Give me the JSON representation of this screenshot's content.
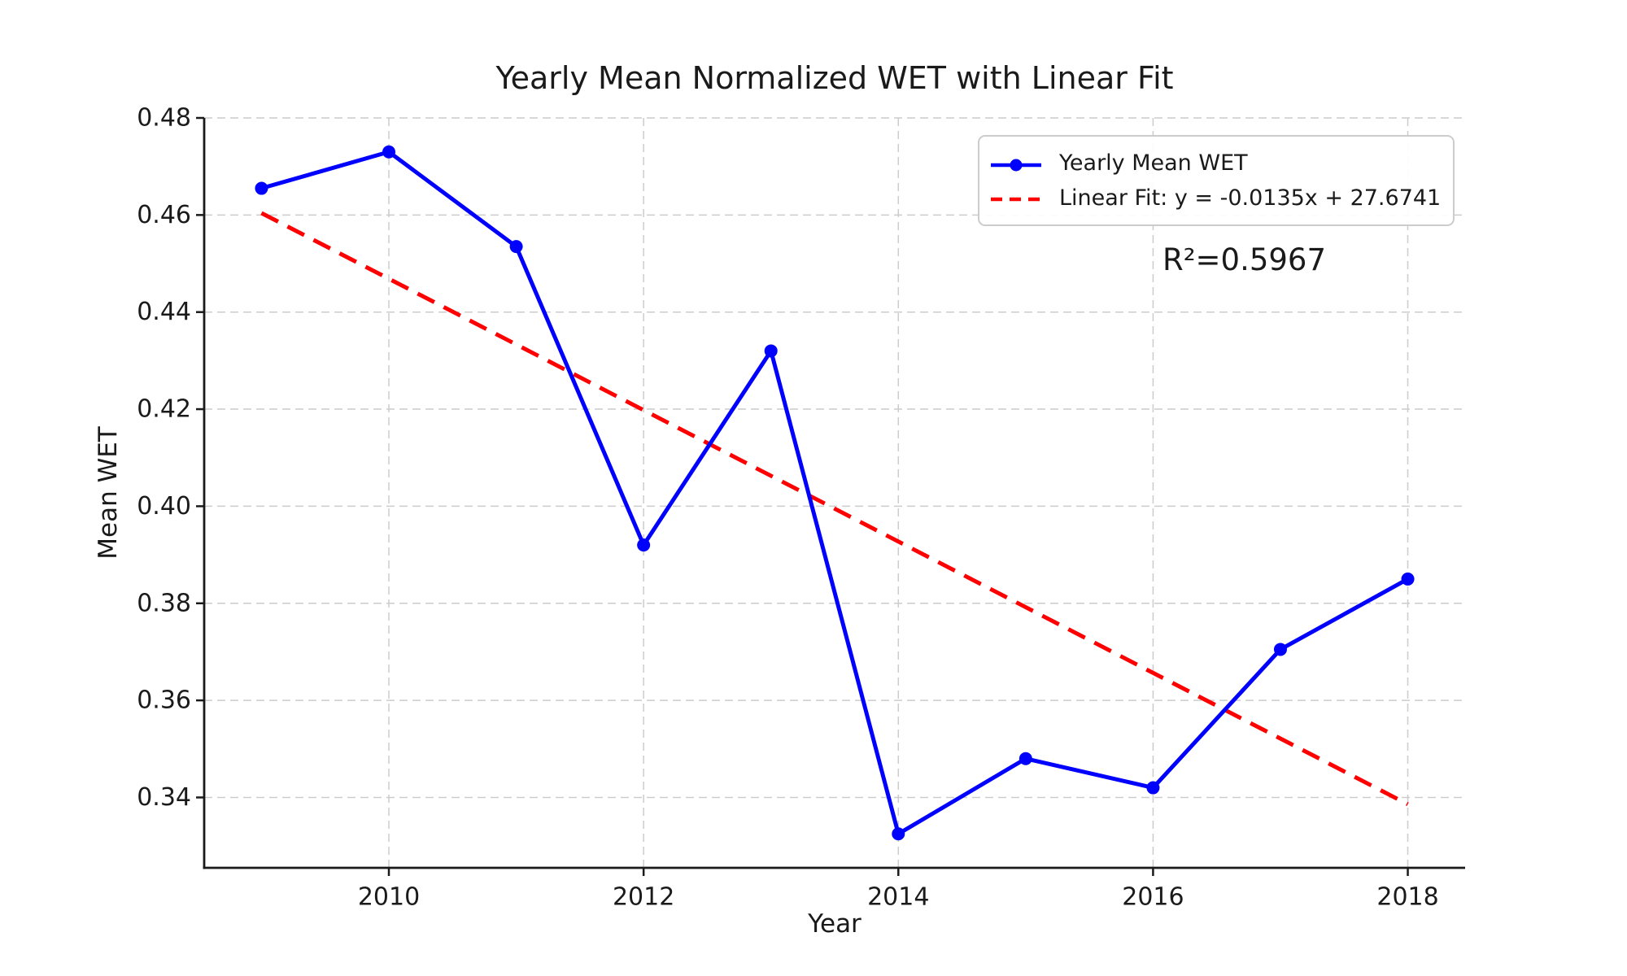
{
  "title": "Yearly Mean Normalized WET with Linear Fit",
  "chart_data": {
    "type": "line",
    "title": "Yearly Mean Normalized WET with Linear Fit",
    "xlabel": "Year",
    "ylabel": "Mean WET",
    "x": [
      2009,
      2010,
      2011,
      2012,
      2013,
      2014,
      2015,
      2016,
      2017,
      2018
    ],
    "series": [
      {
        "name": "Yearly Mean WET",
        "values": [
          0.4655,
          0.473,
          0.4535,
          0.392,
          0.432,
          0.3325,
          0.348,
          0.342,
          0.3705,
          0.385
        ],
        "color": "#0000ff",
        "style": "solid-with-markers"
      },
      {
        "name": "Linear Fit: y = -0.0135x + 27.6741",
        "x": [
          2009,
          2018
        ],
        "values": [
          0.4604,
          0.3386
        ],
        "color": "#ff0000",
        "style": "dashed"
      }
    ],
    "fit": {
      "slope": -0.0135,
      "intercept": 27.6741,
      "r_squared": 0.5967
    },
    "annotation": "R²=0.5967",
    "xlim": [
      2008.55,
      2018.45
    ],
    "ylim": [
      0.3255,
      0.48
    ],
    "xticks": [
      2010,
      2012,
      2014,
      2016,
      2018
    ],
    "yticks": [
      0.34,
      0.36,
      0.38,
      0.4,
      0.42,
      0.44,
      0.46,
      0.48
    ],
    "grid": true,
    "legend_position": "upper right"
  },
  "legend": {
    "entries": [
      {
        "label": "Yearly Mean WET"
      },
      {
        "label": "Linear Fit: y = -0.0135x + 27.6741"
      }
    ]
  },
  "annotation": {
    "r_squared_label": "R²=0.5967"
  },
  "colors": {
    "series": "#0000ff",
    "fit": "#ff0000",
    "grid": "#cccccc",
    "text": "#1a1a1a",
    "spine": "#1a1a1a",
    "legend_border": "#cccccc"
  }
}
